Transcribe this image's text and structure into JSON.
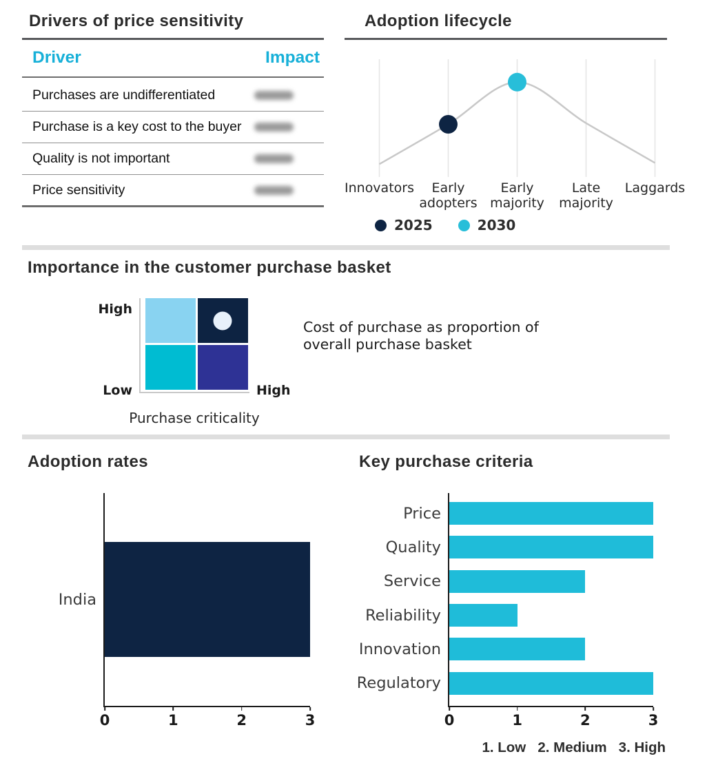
{
  "colors": {
    "accent_cyan": "#17b0d8",
    "bar_cyan": "#1fbcd9",
    "navy": "#0e2443",
    "curve_gray": "#c8c8c8",
    "gridline_gray": "#e4e4e4",
    "divider_gray": "#dedede",
    "matrix_light_blue": "#89d3f1",
    "matrix_navy": "#0d2342",
    "matrix_cyan": "#00bcd2",
    "matrix_indigo": "#2e3295",
    "matrix_marker_light": "#e8f1fb"
  },
  "drivers_table": {
    "title": "Drivers of price sensitivity",
    "columns": [
      "Driver",
      "Impact"
    ],
    "rows": [
      "Purchases are undifferentiated",
      "Purchase is a key cost to the buyer",
      "Quality is not important",
      "Price sensitivity"
    ],
    "impact_values_blurred": true
  },
  "basket_annotation_lines": [
    "Cost of purchase as proportion of",
    "overall purchase basket"
  ],
  "chart_data": [
    {
      "id": "adoption_lifecycle",
      "type": "line",
      "title": "Adoption lifecycle",
      "categories": [
        "Innovators",
        "Early adopters",
        "Early majority",
        "Late majority",
        "Laggards"
      ],
      "curve_values": [
        0.11,
        0.45,
        0.81,
        0.46,
        0.12
      ],
      "curve_color": "#c8c8c8",
      "grid": "vertical-gridlines-on",
      "legend_position": "bottom",
      "series": [
        {
          "name": "2025",
          "category": "Early adopters",
          "color": "#0e2443"
        },
        {
          "name": "2030",
          "category": "Early majority",
          "color": "#28bed9"
        }
      ]
    },
    {
      "id": "purchase_basket",
      "type": "heatmap",
      "title": "Importance in the customer purchase basket",
      "x_axis": {
        "title": "Purchase criticality",
        "max_label": "High"
      },
      "y_axis": {
        "min_label": "Low",
        "max_label": "High"
      },
      "cells": [
        [
          {
            "color": "#89d3f1"
          },
          {
            "color": "#0d2342",
            "marker": true
          }
        ],
        [
          {
            "color": "#00bcd2"
          },
          {
            "color": "#2e3295"
          }
        ]
      ],
      "marker_color": "#e8f1fb",
      "annotation": "Cost of purchase as proportion of overall purchase basket"
    },
    {
      "id": "adoption_rates",
      "type": "bar",
      "orientation": "horizontal",
      "title": "Adoption rates",
      "categories": [
        "India"
      ],
      "values": [
        3
      ],
      "xlim": [
        0,
        3
      ],
      "xticks": [
        "0",
        "1",
        "2",
        "3"
      ],
      "bar_color": "#0e2443"
    },
    {
      "id": "key_purchase_criteria",
      "type": "bar",
      "orientation": "horizontal",
      "title": "Key purchase criteria",
      "categories": [
        "Price",
        "Quality",
        "Service",
        "Reliability",
        "Innovation",
        "Regulatory"
      ],
      "values": [
        3,
        3,
        2,
        1,
        2,
        3
      ],
      "xlim": [
        0,
        3
      ],
      "xticks": [
        "0",
        "1",
        "2",
        "3"
      ],
      "bar_color": "#1fbcd9",
      "scale_note": "1. Low   2. Medium   3. High"
    }
  ]
}
